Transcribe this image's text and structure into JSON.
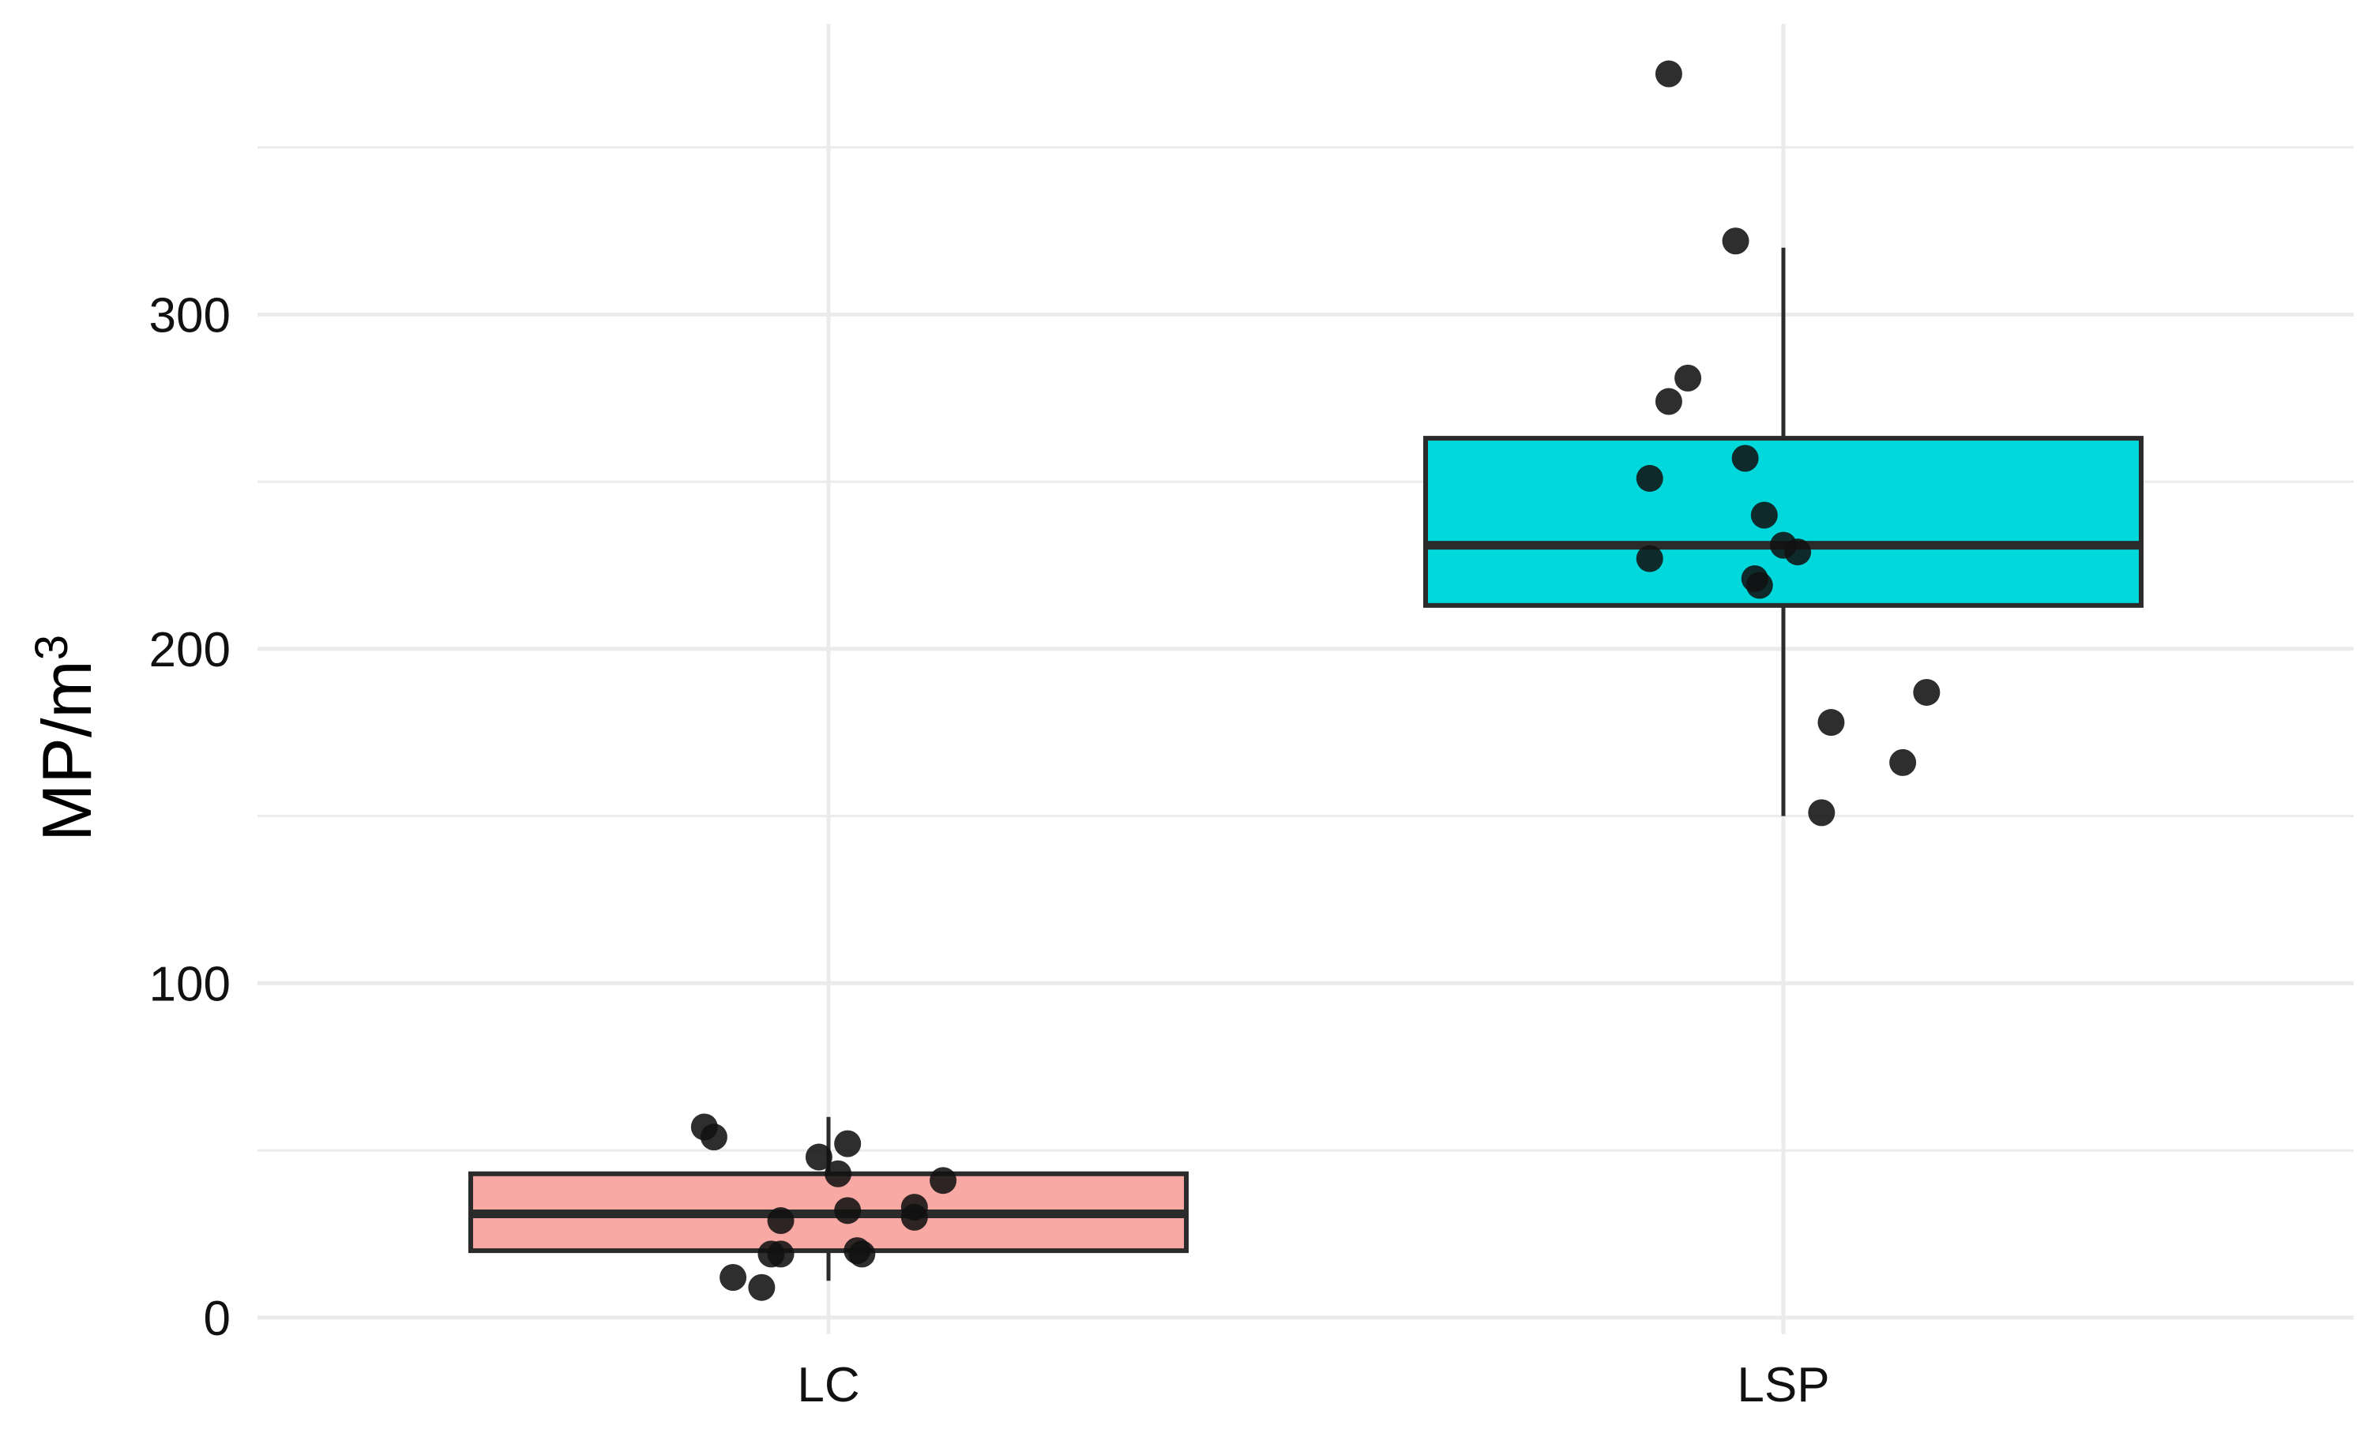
{
  "chart_data": {
    "type": "box",
    "title": "",
    "xlabel": "",
    "ylabel": {
      "text": "MP/m",
      "superscript": "3"
    },
    "ylim": [
      -5,
      387
    ],
    "y_ticks": [
      0,
      100,
      200,
      300
    ],
    "y_tick_labels": [
      "0",
      "100",
      "200",
      "300"
    ],
    "grid": true,
    "legend": "none",
    "categories": [
      "LC",
      "LSP"
    ],
    "boxes": [
      {
        "category": "LC",
        "fill": "#F8A9A4",
        "q1": 20,
        "median": 31,
        "q3": 43,
        "whisker_low": 11,
        "whisker_high": 60,
        "points": [
          {
            "x_jitter": -0.13,
            "y": 57
          },
          {
            "x_jitter": -0.12,
            "y": 54
          },
          {
            "x_jitter": -0.01,
            "y": 48
          },
          {
            "x_jitter": 0.02,
            "y": 52
          },
          {
            "x_jitter": 0.01,
            "y": 43
          },
          {
            "x_jitter": 0.12,
            "y": 41
          },
          {
            "x_jitter": 0.09,
            "y": 33
          },
          {
            "x_jitter": 0.02,
            "y": 32
          },
          {
            "x_jitter": 0.09,
            "y": 30
          },
          {
            "x_jitter": -0.05,
            "y": 29
          },
          {
            "x_jitter": 0.03,
            "y": 20
          },
          {
            "x_jitter": 0.035,
            "y": 19
          },
          {
            "x_jitter": -0.06,
            "y": 19
          },
          {
            "x_jitter": -0.05,
            "y": 19
          },
          {
            "x_jitter": -0.1,
            "y": 12
          },
          {
            "x_jitter": -0.07,
            "y": 9
          }
        ]
      },
      {
        "category": "LSP",
        "fill": "#00D8DC",
        "q1": 213,
        "median": 231,
        "q3": 263,
        "whisker_low": 150,
        "whisker_high": 320,
        "points": [
          {
            "x_jitter": -0.12,
            "y": 372
          },
          {
            "x_jitter": -0.05,
            "y": 322
          },
          {
            "x_jitter": -0.1,
            "y": 281
          },
          {
            "x_jitter": -0.12,
            "y": 274
          },
          {
            "x_jitter": -0.04,
            "y": 257
          },
          {
            "x_jitter": -0.14,
            "y": 251
          },
          {
            "x_jitter": -0.02,
            "y": 240
          },
          {
            "x_jitter": 0.0,
            "y": 231
          },
          {
            "x_jitter": 0.015,
            "y": 229
          },
          {
            "x_jitter": -0.14,
            "y": 227
          },
          {
            "x_jitter": -0.03,
            "y": 221
          },
          {
            "x_jitter": -0.025,
            "y": 219
          },
          {
            "x_jitter": 0.15,
            "y": 187
          },
          {
            "x_jitter": 0.05,
            "y": 178
          },
          {
            "x_jitter": 0.125,
            "y": 166
          },
          {
            "x_jitter": 0.04,
            "y": 151
          }
        ]
      }
    ],
    "colors": {
      "grid": "#EBEBEB",
      "box_outline": "#2B2B2B",
      "point": "#111111"
    }
  }
}
